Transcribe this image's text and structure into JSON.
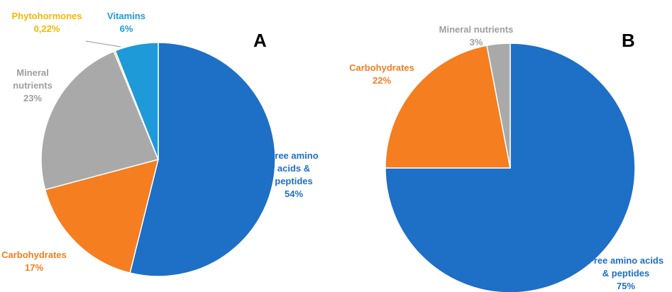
{
  "chart_data": [
    {
      "type": "pie",
      "panel": "A",
      "start_angle_deg": 0,
      "direction": "clockwise",
      "slices": [
        {
          "label": "Free amino acids & peptides",
          "label_lines": [
            "Free amino",
            "acids &",
            "peptides"
          ],
          "value": 54,
          "value_text": "54%",
          "color": "#1E6FC6",
          "text_color": "#1E6FC6"
        },
        {
          "label": "Carbohydrates",
          "label_lines": [
            "Carbohydrates"
          ],
          "value": 17,
          "value_text": "17%",
          "color": "#F47E20",
          "text_color": "#F47E20"
        },
        {
          "label": "Mineral nutrients",
          "label_lines": [
            "Mineral",
            "nutrients"
          ],
          "value": 23,
          "value_text": "23%",
          "color": "#A9A9A9",
          "text_color": "#9E9E9E"
        },
        {
          "label": "Phytohormones",
          "label_lines": [
            "Phytohormones"
          ],
          "value": 0.22,
          "value_text": "0,22%",
          "color": "#F6C200",
          "text_color": "#F6B800"
        },
        {
          "label": "Vitamins",
          "label_lines": [
            "Vitamins"
          ],
          "value": 6,
          "value_text": "6%",
          "color": "#1E9AD8",
          "text_color": "#1E9AD8"
        }
      ]
    },
    {
      "type": "pie",
      "panel": "B",
      "start_angle_deg": 0,
      "direction": "clockwise",
      "slices": [
        {
          "label": "Free amino acids & peptides",
          "label_lines": [
            "Free amino acids",
            "& peptides"
          ],
          "value": 75,
          "value_text": "75%",
          "color": "#1E6FC6",
          "text_color": "#1E6FC6"
        },
        {
          "label": "Carbohydrates",
          "label_lines": [
            "Carbohydrates"
          ],
          "value": 22,
          "value_text": "22%",
          "color": "#F47E20",
          "text_color": "#F47E20"
        },
        {
          "label": "Mineral nutrients",
          "label_lines": [
            "Mineral nutrients"
          ],
          "value": 3,
          "value_text": "3%",
          "color": "#A9A9A9",
          "text_color": "#9E9E9E"
        }
      ]
    }
  ]
}
